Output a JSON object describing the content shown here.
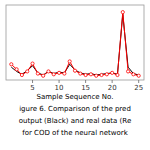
{
  "chart_data": {
    "type": "line",
    "x": [
      1,
      2,
      3,
      4,
      5,
      6,
      7,
      8,
      9,
      10,
      11,
      12,
      13,
      14,
      15,
      16,
      17,
      18,
      19,
      20,
      21,
      22,
      23,
      24,
      25
    ],
    "series": [
      {
        "color": "#000000",
        "values": [
          0.18,
          0.12,
          0.08,
          0.13,
          0.2,
          0.1,
          0.07,
          0.12,
          0.09,
          0.11,
          0.1,
          0.22,
          0.14,
          0.1,
          0.08,
          0.09,
          0.07,
          0.08,
          0.09,
          0.1,
          0.08,
          0.92,
          0.18,
          0.09,
          0.07
        ]
      },
      {
        "color": "#ff0000",
        "marker": "circle",
        "values": [
          0.22,
          0.15,
          0.07,
          0.12,
          0.23,
          0.09,
          0.06,
          0.12,
          0.08,
          0.1,
          0.09,
          0.26,
          0.13,
          0.09,
          0.07,
          0.08,
          0.06,
          0.07,
          0.08,
          0.1,
          0.07,
          0.95,
          0.12,
          0.08,
          0.06
        ]
      }
    ],
    "xlabel": "Sample Sequence No.",
    "xlim": [
      0,
      26
    ],
    "ylim": [
      0,
      1.05
    ],
    "xticks": [
      5,
      10,
      15,
      20,
      25
    ],
    "tick_labels": "x",
    "annotations": [
      "igure 6. Comparison of the pred",
      "output (Black) and real data (Re",
      "for COD of the neural network"
    ]
  }
}
